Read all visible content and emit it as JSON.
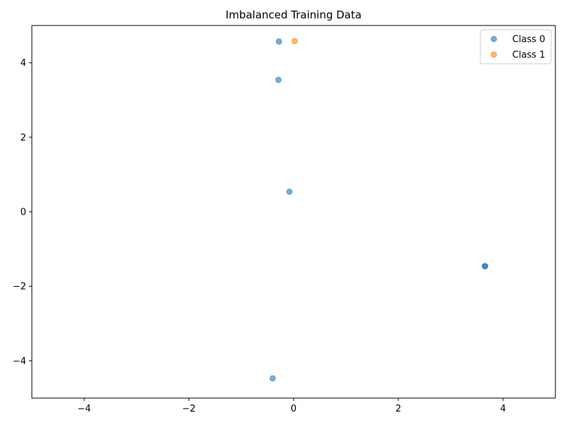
{
  "chart_data": {
    "type": "scatter",
    "title": "Imbalanced Training Data",
    "xlabel": "",
    "ylabel": "",
    "xlim": [
      -5,
      5
    ],
    "ylim": [
      -5,
      5
    ],
    "xticks": [
      -4,
      -2,
      0,
      2,
      4
    ],
    "yticks": [
      -4,
      -2,
      0,
      2,
      4
    ],
    "xtick_labels": [
      "−4",
      "−2",
      "0",
      "2",
      "4"
    ],
    "ytick_labels": [
      "−4",
      "−2",
      "0",
      "2",
      "4"
    ],
    "grid": false,
    "legend_position": "top-right",
    "series": [
      {
        "name": "Class 0",
        "color": "#1f77b4",
        "points": [
          {
            "x": -0.28,
            "y": 4.57
          },
          {
            "x": -0.29,
            "y": 3.54
          },
          {
            "x": -0.08,
            "y": 0.54
          },
          {
            "x": 3.65,
            "y": -1.46
          },
          {
            "x": 3.66,
            "y": -1.46
          },
          {
            "x": -0.4,
            "y": -4.47
          }
        ]
      },
      {
        "name": "Class 1",
        "color": "#ff7f0e",
        "points": [
          {
            "x": 0.02,
            "y": 4.58
          }
        ]
      }
    ]
  }
}
